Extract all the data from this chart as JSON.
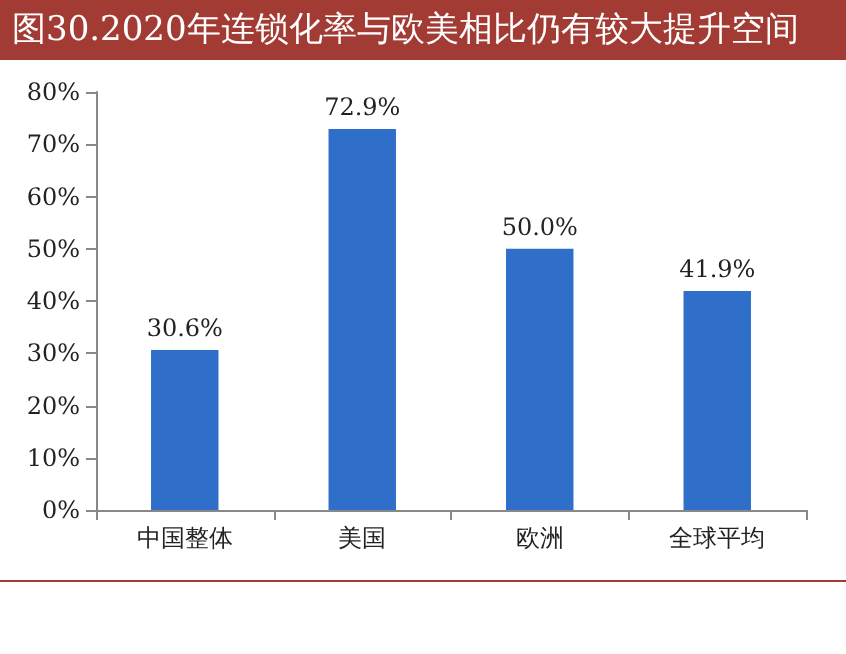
{
  "chart_data": {
    "type": "bar",
    "title": "图30.2020年连锁化率与欧美相比仍有较大提升空间",
    "categories": [
      "中国整体",
      "美国",
      "欧洲",
      "全球平均"
    ],
    "values": [
      30.6,
      72.9,
      50.0,
      41.9
    ],
    "value_labels": [
      "30.6%",
      "72.9%",
      "50.0%",
      "41.9%"
    ],
    "color": "#2f6fc9",
    "ylim": [
      0,
      80
    ],
    "yticks": [
      {
        "value": 0,
        "label": "0%"
      },
      {
        "value": 10,
        "label": "10%"
      },
      {
        "value": 20,
        "label": "20%"
      },
      {
        "value": 30,
        "label": "30%"
      },
      {
        "value": 40,
        "label": "40%"
      },
      {
        "value": 50,
        "label": "50%"
      },
      {
        "value": 60,
        "label": "60%"
      },
      {
        "value": 70,
        "label": "70%"
      },
      {
        "value": 80,
        "label": "80%"
      }
    ],
    "grid": false
  }
}
